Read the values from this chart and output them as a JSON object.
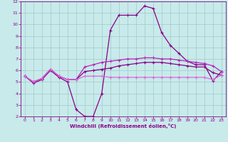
{
  "xlabel": "Windchill (Refroidissement éolien,°C)",
  "xlim": [
    -0.5,
    23.5
  ],
  "ylim": [
    2,
    12
  ],
  "xticks": [
    0,
    1,
    2,
    3,
    4,
    5,
    6,
    7,
    8,
    9,
    10,
    11,
    12,
    13,
    14,
    15,
    16,
    17,
    18,
    19,
    20,
    21,
    22,
    23
  ],
  "yticks": [
    2,
    3,
    4,
    5,
    6,
    7,
    8,
    9,
    10,
    11,
    12
  ],
  "bg_color": "#c8eaea",
  "grid_color": "#9fc9c9",
  "line_color_dark": "#880088",
  "line_color_mid": "#bb22bb",
  "line_color_light": "#dd66dd",
  "series1": [
    5.5,
    4.9,
    5.2,
    6.0,
    5.4,
    5.0,
    2.6,
    2.0,
    2.0,
    4.0,
    9.5,
    10.8,
    10.8,
    10.8,
    11.6,
    11.4,
    9.3,
    8.2,
    7.5,
    6.8,
    6.5,
    6.5,
    5.1,
    5.9
  ],
  "series2": [
    5.5,
    5.0,
    5.3,
    6.1,
    5.5,
    5.2,
    5.2,
    6.3,
    6.5,
    6.7,
    6.8,
    6.9,
    7.0,
    7.0,
    7.1,
    7.1,
    7.0,
    7.0,
    6.9,
    6.8,
    6.7,
    6.6,
    6.4,
    5.9
  ],
  "series3": [
    5.5,
    5.0,
    5.3,
    6.1,
    5.5,
    5.2,
    5.2,
    5.9,
    6.0,
    6.1,
    6.2,
    6.4,
    6.5,
    6.6,
    6.7,
    6.7,
    6.7,
    6.6,
    6.5,
    6.4,
    6.3,
    6.3,
    5.8,
    5.6
  ],
  "series4": [
    5.5,
    5.0,
    5.3,
    6.1,
    5.5,
    5.2,
    5.2,
    5.5,
    5.5,
    5.5,
    5.4,
    5.4,
    5.4,
    5.4,
    5.4,
    5.4,
    5.4,
    5.4,
    5.4,
    5.4,
    5.4,
    5.4,
    5.2,
    5.6
  ]
}
